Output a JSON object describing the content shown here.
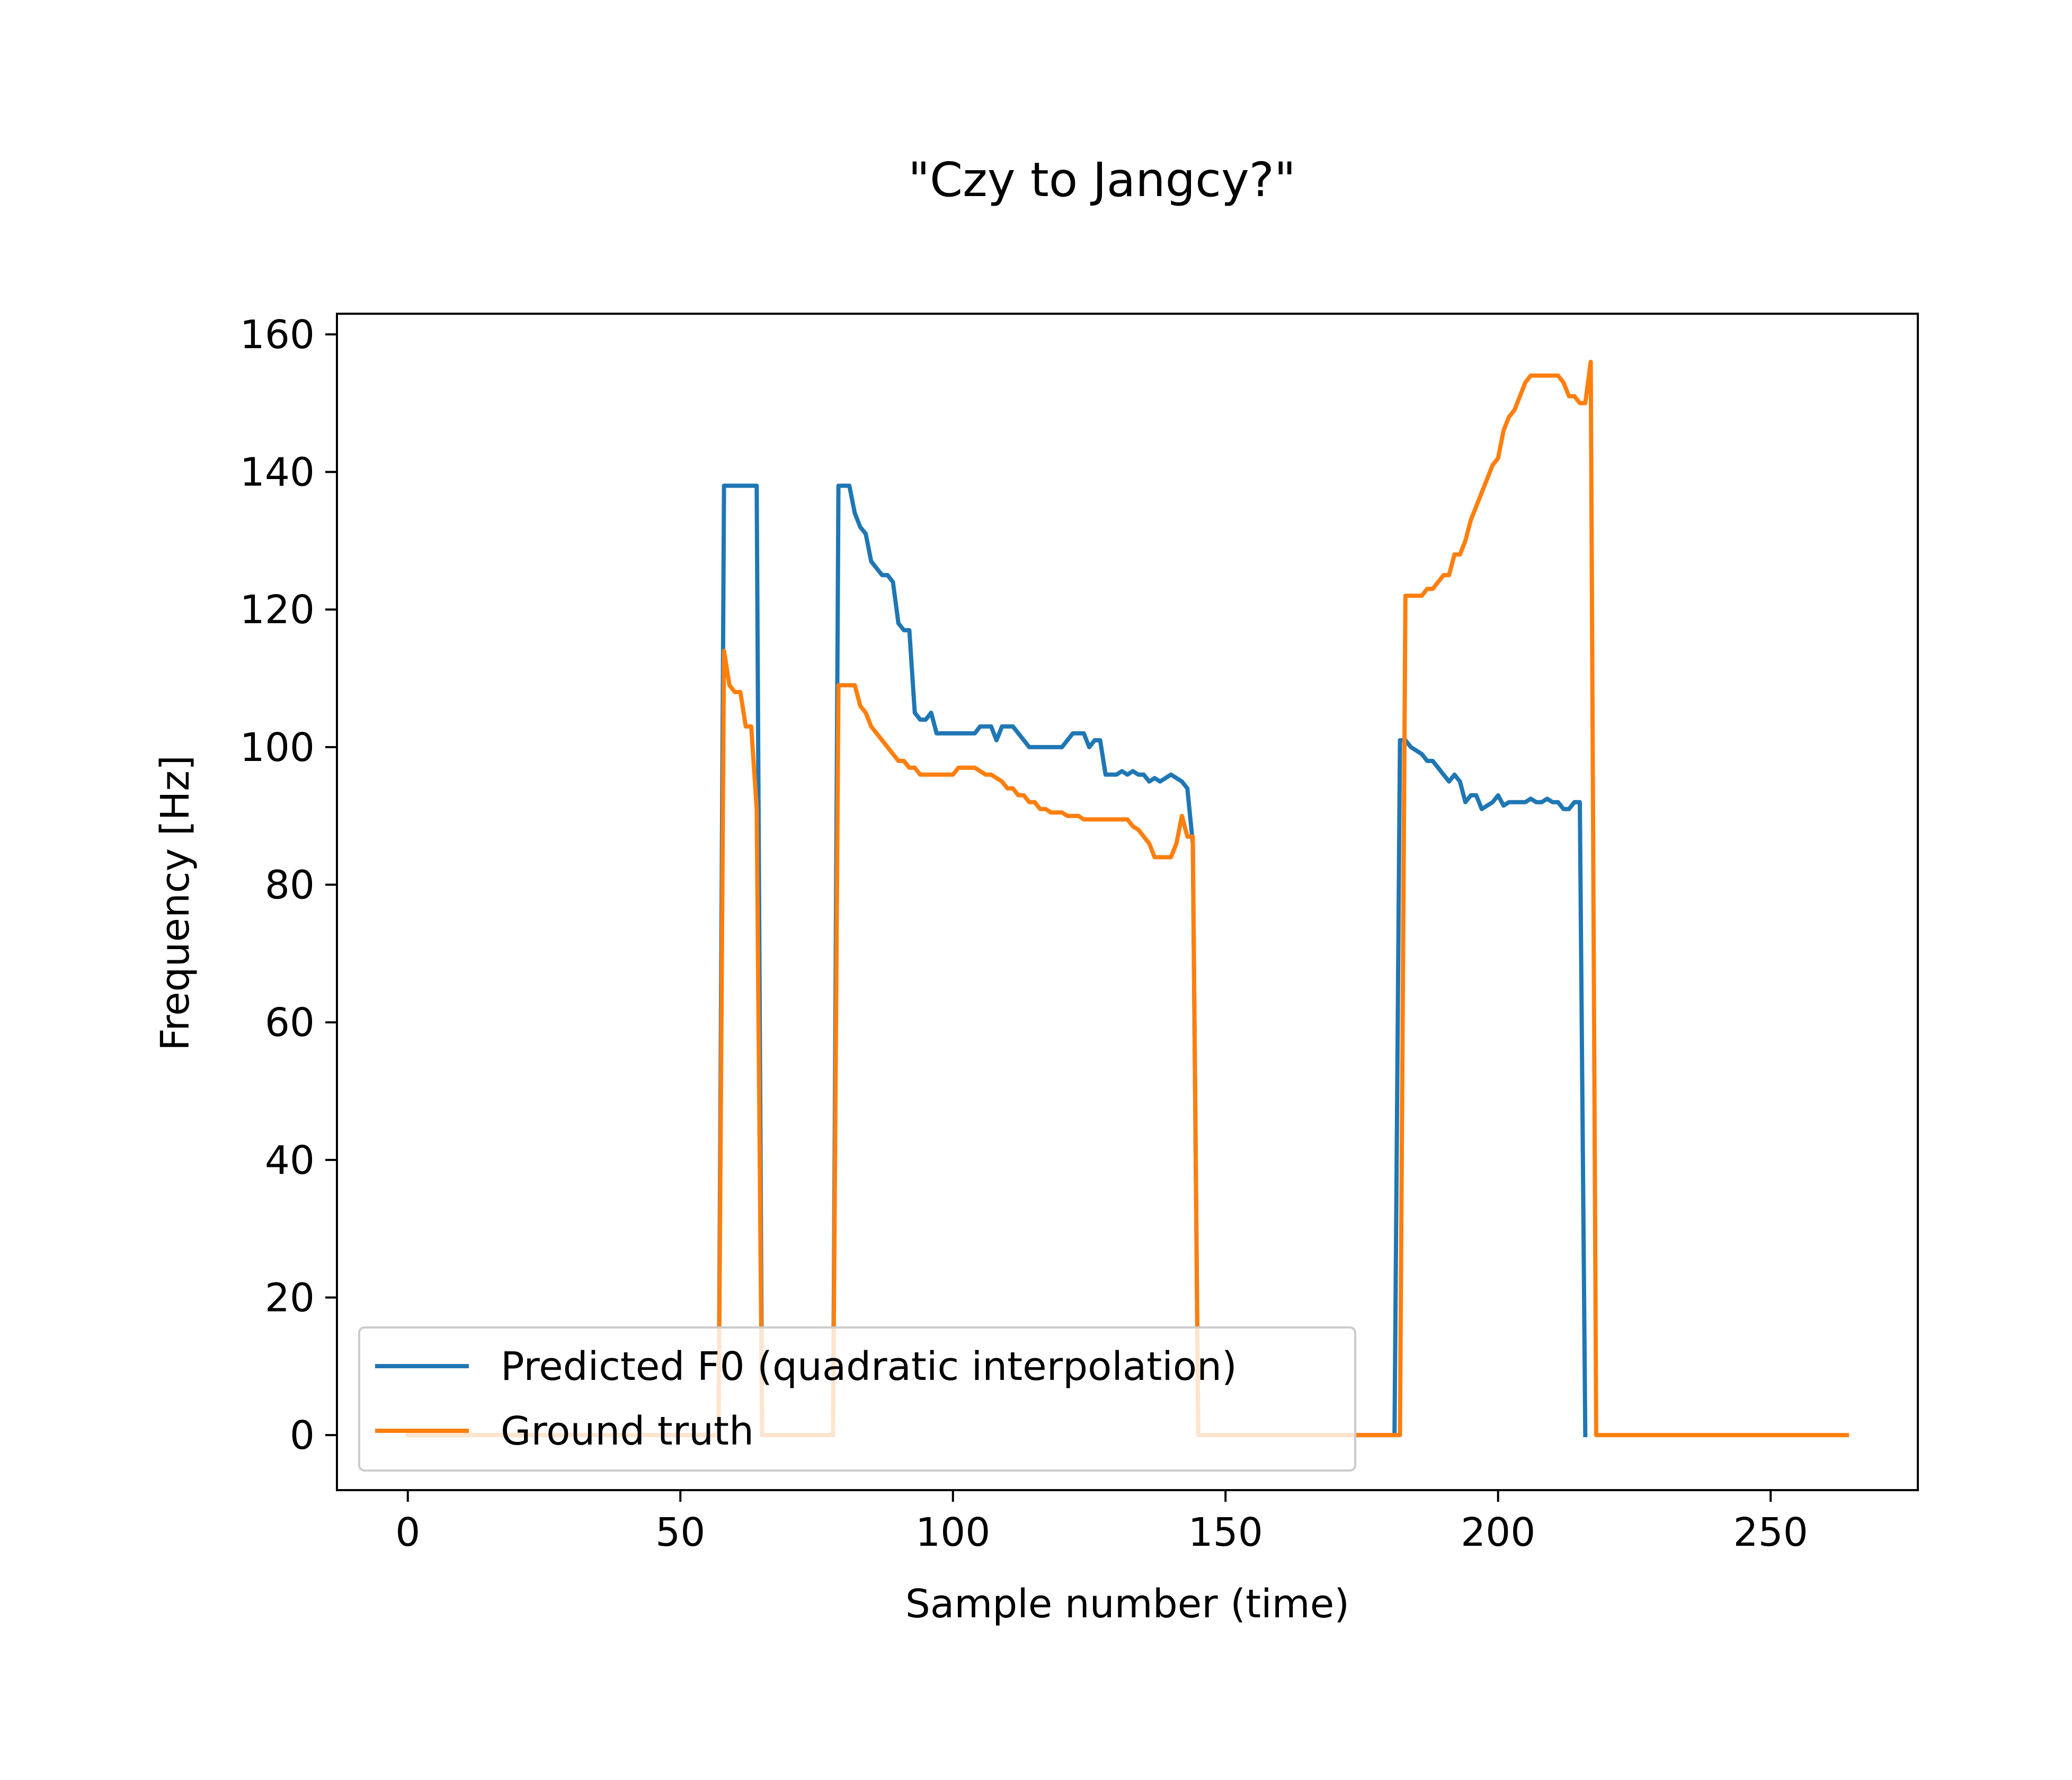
{
  "chart_data": {
    "type": "line",
    "title": "\"Czy to Jangcy?\"",
    "xlabel": "Sample number (time)",
    "ylabel": "Frequency [Hz]",
    "xlim": [
      -13,
      277
    ],
    "ylim": [
      -8,
      163
    ],
    "xticks": [
      0,
      50,
      100,
      150,
      200,
      250
    ],
    "yticks": [
      0,
      20,
      40,
      60,
      80,
      100,
      120,
      140,
      160
    ],
    "xtick_labels": [
      "0",
      "50",
      "100",
      "150",
      "200",
      "250"
    ],
    "ytick_labels": [
      "0",
      "20",
      "40",
      "60",
      "80",
      "100",
      "120",
      "140",
      "160"
    ],
    "grid": false,
    "legend_position": "lower-left",
    "series": [
      {
        "name": "Predicted F0 (quadratic interpolation)",
        "color": "#1f77b4",
        "points": [
          [
            0,
            0
          ],
          [
            57,
            0
          ],
          [
            58,
            138
          ],
          [
            59,
            138
          ],
          [
            60,
            138
          ],
          [
            61,
            138
          ],
          [
            62,
            138
          ],
          [
            63,
            138
          ],
          [
            64,
            138
          ],
          [
            65,
            0
          ],
          [
            77,
            0
          ],
          [
            78,
            0
          ],
          [
            79,
            138
          ],
          [
            80,
            138
          ],
          [
            81,
            138
          ],
          [
            82,
            134
          ],
          [
            83,
            132
          ],
          [
            84,
            131
          ],
          [
            85,
            127
          ],
          [
            86,
            126
          ],
          [
            87,
            125
          ],
          [
            88,
            125
          ],
          [
            89,
            124
          ],
          [
            90,
            118
          ],
          [
            91,
            117
          ],
          [
            92,
            117
          ],
          [
            93,
            105
          ],
          [
            94,
            104
          ],
          [
            95,
            104
          ],
          [
            96,
            105
          ],
          [
            97,
            102
          ],
          [
            98,
            102
          ],
          [
            99,
            102
          ],
          [
            100,
            102
          ],
          [
            101,
            102
          ],
          [
            102,
            102
          ],
          [
            103,
            102
          ],
          [
            104,
            102
          ],
          [
            105,
            103
          ],
          [
            106,
            103
          ],
          [
            107,
            103
          ],
          [
            108,
            101
          ],
          [
            109,
            103
          ],
          [
            110,
            103
          ],
          [
            111,
            103
          ],
          [
            112,
            102
          ],
          [
            113,
            101
          ],
          [
            114,
            100
          ],
          [
            115,
            100
          ],
          [
            116,
            100
          ],
          [
            117,
            100
          ],
          [
            118,
            100
          ],
          [
            119,
            100
          ],
          [
            120,
            100
          ],
          [
            121,
            101
          ],
          [
            122,
            102
          ],
          [
            123,
            102
          ],
          [
            124,
            102
          ],
          [
            125,
            100
          ],
          [
            126,
            101
          ],
          [
            127,
            101
          ],
          [
            128,
            96
          ],
          [
            129,
            96
          ],
          [
            130,
            96
          ],
          [
            131,
            96.5
          ],
          [
            132,
            96
          ],
          [
            133,
            96.5
          ],
          [
            134,
            96
          ],
          [
            135,
            96
          ],
          [
            136,
            95
          ],
          [
            137,
            95.5
          ],
          [
            138,
            95
          ],
          [
            139,
            95.5
          ],
          [
            140,
            96
          ],
          [
            141,
            95.5
          ],
          [
            142,
            95
          ],
          [
            143,
            94
          ],
          [
            144,
            86
          ],
          [
            145,
            0
          ],
          [
            181,
            0
          ],
          [
            182,
            101
          ],
          [
            183,
            101
          ],
          [
            184,
            100
          ],
          [
            185,
            99.5
          ],
          [
            186,
            99
          ],
          [
            187,
            98
          ],
          [
            188,
            98
          ],
          [
            189,
            97
          ],
          [
            190,
            96
          ],
          [
            191,
            95
          ],
          [
            192,
            96
          ],
          [
            193,
            95
          ],
          [
            194,
            92
          ],
          [
            195,
            93
          ],
          [
            196,
            93
          ],
          [
            197,
            91
          ],
          [
            198,
            91.5
          ],
          [
            199,
            92
          ],
          [
            200,
            93
          ],
          [
            201,
            91.5
          ],
          [
            202,
            92
          ],
          [
            203,
            92
          ],
          [
            204,
            92
          ],
          [
            205,
            92
          ],
          [
            206,
            92.5
          ],
          [
            207,
            92
          ],
          [
            208,
            92
          ],
          [
            209,
            92.5
          ],
          [
            210,
            92
          ],
          [
            211,
            92
          ],
          [
            212,
            91
          ],
          [
            213,
            91
          ],
          [
            214,
            92
          ],
          [
            215,
            92
          ],
          [
            216,
            0
          ]
        ]
      },
      {
        "name": "Ground truth",
        "color": "#ff7f0e",
        "points": [
          [
            0,
            0
          ],
          [
            57,
            0
          ],
          [
            58,
            114
          ],
          [
            59,
            109
          ],
          [
            60,
            108
          ],
          [
            61,
            108
          ],
          [
            62,
            103
          ],
          [
            63,
            103
          ],
          [
            64,
            91
          ],
          [
            65,
            0
          ],
          [
            77,
            0
          ],
          [
            78,
            0
          ],
          [
            79,
            109
          ],
          [
            80,
            109
          ],
          [
            81,
            109
          ],
          [
            82,
            109
          ],
          [
            83,
            106
          ],
          [
            84,
            105
          ],
          [
            85,
            103
          ],
          [
            86,
            102
          ],
          [
            87,
            101
          ],
          [
            88,
            100
          ],
          [
            89,
            99
          ],
          [
            90,
            98
          ],
          [
            91,
            98
          ],
          [
            92,
            97
          ],
          [
            93,
            97
          ],
          [
            94,
            96
          ],
          [
            95,
            96
          ],
          [
            96,
            96
          ],
          [
            97,
            96
          ],
          [
            98,
            96
          ],
          [
            99,
            96
          ],
          [
            100,
            96
          ],
          [
            101,
            97
          ],
          [
            102,
            97
          ],
          [
            103,
            97
          ],
          [
            104,
            97
          ],
          [
            105,
            96.5
          ],
          [
            106,
            96
          ],
          [
            107,
            96
          ],
          [
            108,
            95.5
          ],
          [
            109,
            95
          ],
          [
            110,
            94
          ],
          [
            111,
            94
          ],
          [
            112,
            93
          ],
          [
            113,
            93
          ],
          [
            114,
            92
          ],
          [
            115,
            92
          ],
          [
            116,
            91
          ],
          [
            117,
            91
          ],
          [
            118,
            90.5
          ],
          [
            119,
            90.5
          ],
          [
            120,
            90.5
          ],
          [
            121,
            90
          ],
          [
            122,
            90
          ],
          [
            123,
            90
          ],
          [
            124,
            89.5
          ],
          [
            125,
            89.5
          ],
          [
            126,
            89.5
          ],
          [
            127,
            89.5
          ],
          [
            128,
            89.5
          ],
          [
            129,
            89.5
          ],
          [
            130,
            89.5
          ],
          [
            131,
            89.5
          ],
          [
            132,
            89.5
          ],
          [
            133,
            88.5
          ],
          [
            134,
            88
          ],
          [
            135,
            87
          ],
          [
            136,
            86
          ],
          [
            137,
            84
          ],
          [
            138,
            84
          ],
          [
            139,
            84
          ],
          [
            140,
            84
          ],
          [
            141,
            86
          ],
          [
            142,
            90
          ],
          [
            143,
            87
          ],
          [
            144,
            87
          ],
          [
            145,
            0
          ],
          [
            181,
            0
          ],
          [
            182,
            0
          ],
          [
            183,
            122
          ],
          [
            184,
            122
          ],
          [
            185,
            122
          ],
          [
            186,
            122
          ],
          [
            187,
            123
          ],
          [
            188,
            123
          ],
          [
            189,
            124
          ],
          [
            190,
            125
          ],
          [
            191,
            125
          ],
          [
            192,
            128
          ],
          [
            193,
            128
          ],
          [
            194,
            130
          ],
          [
            195,
            133
          ],
          [
            196,
            135
          ],
          [
            197,
            137
          ],
          [
            198,
            139
          ],
          [
            199,
            141
          ],
          [
            200,
            142
          ],
          [
            201,
            146
          ],
          [
            202,
            148
          ],
          [
            203,
            149
          ],
          [
            204,
            151
          ],
          [
            205,
            153
          ],
          [
            206,
            154
          ],
          [
            207,
            154
          ],
          [
            208,
            154
          ],
          [
            209,
            154
          ],
          [
            210,
            154
          ],
          [
            211,
            154
          ],
          [
            212,
            153
          ],
          [
            213,
            151
          ],
          [
            214,
            151
          ],
          [
            215,
            150
          ],
          [
            216,
            150
          ],
          [
            217,
            156
          ],
          [
            218,
            0
          ],
          [
            264,
            0
          ]
        ]
      }
    ]
  }
}
